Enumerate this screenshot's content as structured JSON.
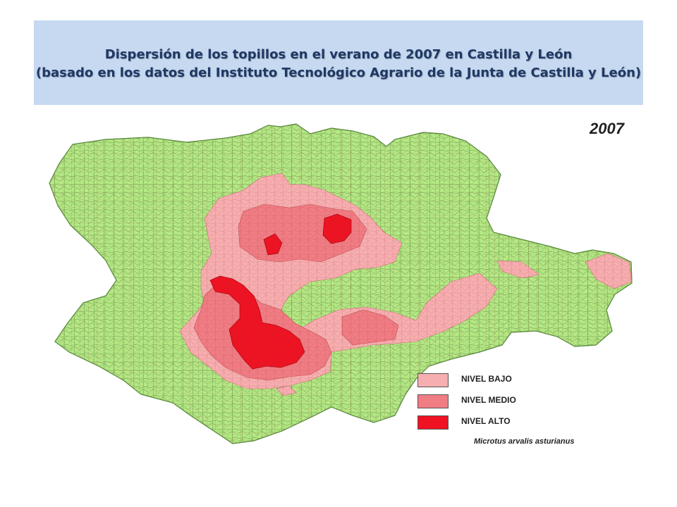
{
  "title": {
    "line1": "Dispersión de los topillos en el verano de 2007 en Castilla y León",
    "line2": "(basado en los datos del Instituto Tecnológico Agrario de la Junta de Castilla y León)"
  },
  "map": {
    "year_label": "2007",
    "species_label": "Microtus arvalis asturianus",
    "colors": {
      "base": "#b3ea85",
      "border": "#6b9a4d",
      "nivel_bajo": "#f6aeb0",
      "nivel_medio": "#f07c84",
      "nivel_alto": "#ee1222"
    }
  },
  "legend": [
    {
      "label": "NIVEL BAJO",
      "color": "#f6aeb0"
    },
    {
      "label": "NIVEL MEDIO",
      "color": "#f07c84"
    },
    {
      "label": "NIVEL ALTO",
      "color": "#ee1222"
    }
  ]
}
